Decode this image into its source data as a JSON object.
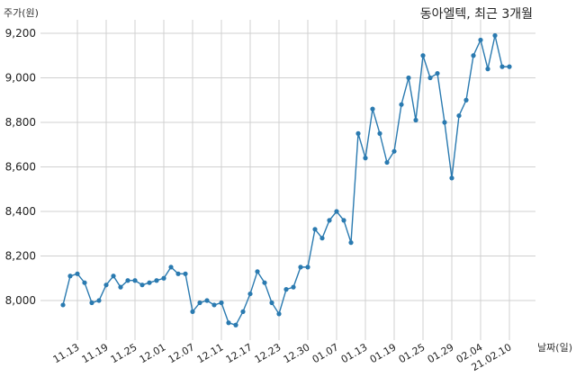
{
  "chart_data": {
    "type": "line",
    "title": "동아엘텍, 최근 3개월",
    "xlabel": "날짜(일)",
    "ylabel": "주가(원)",
    "ylim": [
      7850,
      9250
    ],
    "yticks": [
      8000,
      8200,
      8400,
      8600,
      8800,
      9000,
      9200
    ],
    "ytick_labels": [
      "8,000",
      "8,200",
      "8,400",
      "8,600",
      "8,800",
      "9,000",
      "9,200"
    ],
    "grid": true,
    "x_ticks": [
      {
        "index": 2,
        "label": "11.13"
      },
      {
        "index": 6,
        "label": "11.19"
      },
      {
        "index": 10,
        "label": "11.25"
      },
      {
        "index": 14,
        "label": "12.01"
      },
      {
        "index": 18,
        "label": "12.07"
      },
      {
        "index": 22,
        "label": "12.11"
      },
      {
        "index": 26,
        "label": "12.17"
      },
      {
        "index": 30,
        "label": "12.23"
      },
      {
        "index": 34,
        "label": "12.30"
      },
      {
        "index": 38,
        "label": "01.07"
      },
      {
        "index": 42,
        "label": "01.13"
      },
      {
        "index": 46,
        "label": "01.19"
      },
      {
        "index": 50,
        "label": "01.25"
      },
      {
        "index": 54,
        "label": "01.29"
      },
      {
        "index": 58,
        "label": "02.04"
      },
      {
        "index": 62,
        "label": "21.02.10"
      }
    ],
    "series": [
      {
        "values": [
          7980,
          8110,
          8120,
          8080,
          7990,
          8000,
          8070,
          8110,
          8060,
          8090,
          8090,
          8070,
          8080,
          8090,
          8100,
          8150,
          8120,
          8120,
          7950,
          7990,
          8000,
          7980,
          7990,
          7900,
          7890,
          7950,
          8030,
          8130,
          8080,
          7990,
          7940,
          8050,
          8060,
          8150,
          8150,
          8320,
          8280,
          8360,
          8400,
          8360,
          8260,
          8750,
          8640,
          8860,
          8750,
          8620,
          8670,
          8880,
          9000,
          8810,
          9100,
          9000,
          9020,
          8800,
          8550,
          8830,
          8900,
          9100,
          9170,
          9040,
          9190,
          9050,
          9050
        ]
      }
    ]
  }
}
